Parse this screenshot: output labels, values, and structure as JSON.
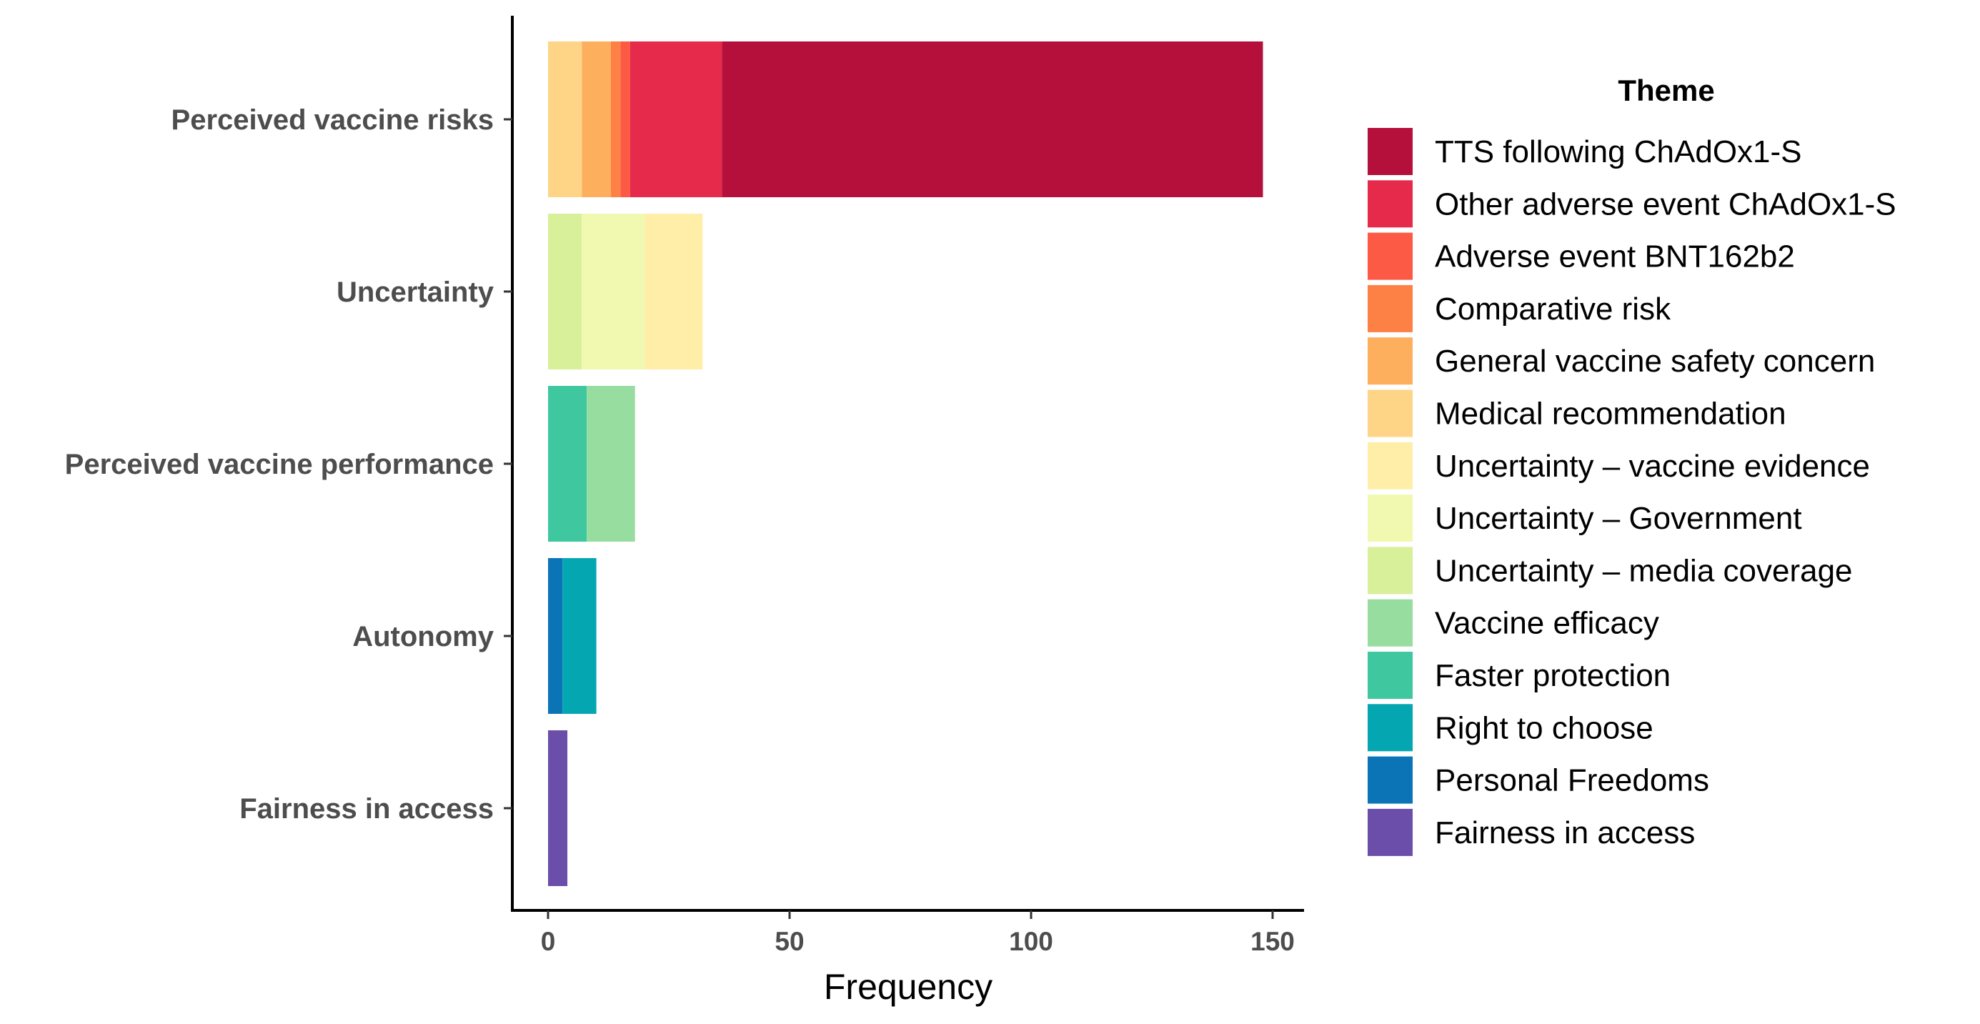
{
  "chart_data": {
    "type": "bar",
    "orientation": "horizontal",
    "stacked": true,
    "title": "",
    "xlabel": "Frequency",
    "ylabel": "",
    "xlim": [
      0,
      155
    ],
    "xticks": [
      0,
      50,
      100,
      150
    ],
    "categories": [
      "Perceived vaccine risks",
      "Uncertainty",
      "Perceived vaccine performance",
      "Autonomy",
      "Fairness in access"
    ],
    "legend": {
      "title": "Theme",
      "position": "right"
    },
    "series": [
      {
        "name": "TTS following ChAdOx1-S",
        "color": "#b5103c",
        "values": [
          112,
          0,
          0,
          0,
          0
        ]
      },
      {
        "name": "Other adverse event ChAdOx1-S",
        "color": "#e62a4b",
        "values": [
          19,
          0,
          0,
          0,
          0
        ]
      },
      {
        "name": "Adverse event BNT162b2",
        "color": "#fc5a44",
        "values": [
          2,
          0,
          0,
          0,
          0
        ]
      },
      {
        "name": "Comparative risk",
        "color": "#fd8145",
        "values": [
          2,
          0,
          0,
          0,
          0
        ]
      },
      {
        "name": "General vaccine safety concern",
        "color": "#fdaf5e",
        "values": [
          6,
          0,
          0,
          0,
          0
        ]
      },
      {
        "name": "Medical recommendation",
        "color": "#fed586",
        "values": [
          7,
          0,
          0,
          0,
          0
        ]
      },
      {
        "name": "Uncertainty – vaccine evidence",
        "color": "#feeea8",
        "values": [
          0,
          12,
          0,
          0,
          0
        ]
      },
      {
        "name": "Uncertainty – Government",
        "color": "#f1f9b0",
        "values": [
          0,
          13,
          0,
          0,
          0
        ]
      },
      {
        "name": "Uncertainty – media coverage",
        "color": "#d8f09a",
        "values": [
          0,
          7,
          0,
          0,
          0
        ]
      },
      {
        "name": "Vaccine efficacy",
        "color": "#97dd9f",
        "values": [
          0,
          0,
          10,
          0,
          0
        ]
      },
      {
        "name": "Faster protection",
        "color": "#3fc8a0",
        "values": [
          0,
          0,
          8,
          0,
          0
        ]
      },
      {
        "name": "Right to choose",
        "color": "#04a7b1",
        "values": [
          0,
          0,
          0,
          7,
          0
        ]
      },
      {
        "name": "Personal Freedoms",
        "color": "#0b74b7",
        "values": [
          0,
          0,
          0,
          3,
          0
        ]
      },
      {
        "name": "Fairness in access",
        "color": "#6a4ea9",
        "values": [
          0,
          0,
          0,
          0,
          4
        ]
      }
    ]
  }
}
